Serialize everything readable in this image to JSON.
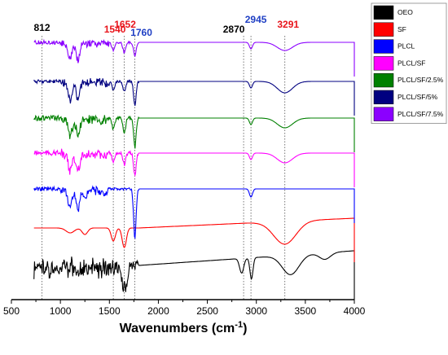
{
  "chart_data": {
    "type": "line",
    "title": "",
    "xlabel_main": "Wavenumbers (cm",
    "xlabel_sup": "-1",
    "xlabel_close": ")",
    "ylabel": "",
    "xlim": [
      500,
      4000
    ],
    "x_ticks": [
      500,
      1000,
      1500,
      2000,
      2500,
      3000,
      3500,
      4000
    ],
    "x_tick_labels": [
      "500",
      "1000",
      "1500",
      "2000",
      "2500",
      "3000",
      "3500",
      "4000"
    ],
    "grid": false,
    "legend_position": "top-right",
    "annotations": [
      {
        "label": "812",
        "x": 812,
        "color": "#000000"
      },
      {
        "label": "1540",
        "x": 1540,
        "color": "#e8141b"
      },
      {
        "label": "1652",
        "x": 1652,
        "color": "#e8141b"
      },
      {
        "label": "1760",
        "x": 1760,
        "color": "#1f3fc4"
      },
      {
        "label": "2870",
        "x": 2870,
        "color": "#000000"
      },
      {
        "label": "2945",
        "x": 2945,
        "color": "#1f3fc4"
      },
      {
        "label": "3291",
        "x": 3291,
        "color": "#e8141b"
      }
    ],
    "series": [
      {
        "name": "OEO",
        "color": "#000000"
      },
      {
        "name": "SF",
        "color": "#ff0000"
      },
      {
        "name": "PLCL",
        "color": "#0000ff"
      },
      {
        "name": "PLCL/SF",
        "color": "#ff00ff"
      },
      {
        "name": "PLCL/SF/2.5%",
        "color": "#008000"
      },
      {
        "name": "PLCL/SF/5%",
        "color": "#000080"
      },
      {
        "name": "PLCL/SF/7.5%",
        "color": "#8b00ff"
      }
    ]
  }
}
